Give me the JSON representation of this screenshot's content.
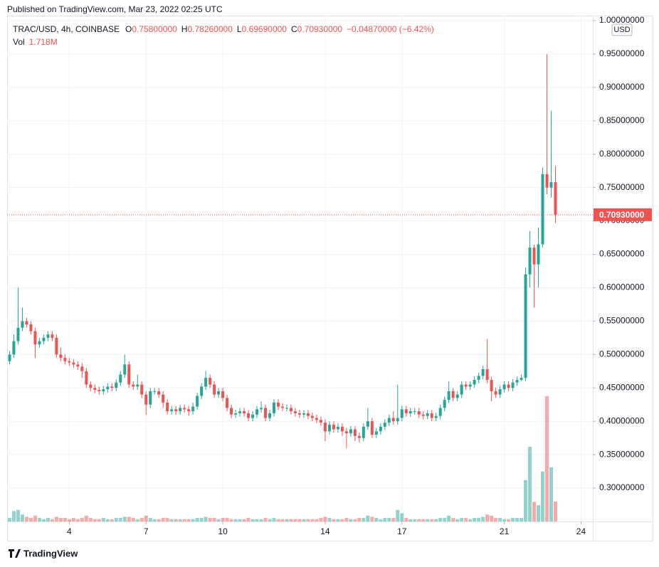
{
  "published": "Published on TradingView.com, Mar 23, 2022 02:25 UTC",
  "footer": "TradingView",
  "chart_data": {
    "type": "candlestick",
    "symbol": "TRAC/USD, 4h, COINBASE",
    "ohlc_legend": {
      "o_label": "O",
      "o": "0.75800000",
      "h_label": "H",
      "h": "0.78260000",
      "l_label": "L",
      "l": "0.69690000",
      "c_label": "C",
      "c": "0.70930000",
      "change": "−0.04870000 (−6.42%)"
    },
    "volume_legend": {
      "label": "Vol",
      "value": "1.718M"
    },
    "currency": "USD",
    "up_color": "#26a69a",
    "down_color": "#ef5350",
    "grid": true,
    "x": [
      1.667,
      1.833,
      2,
      2.167,
      2.333,
      2.5,
      2.667,
      2.833,
      3,
      3.167,
      3.333,
      3.5,
      3.667,
      3.833,
      4,
      4.167,
      4.333,
      4.5,
      4.667,
      4.833,
      5,
      5.167,
      5.333,
      5.5,
      5.667,
      5.833,
      6,
      6.167,
      6.333,
      6.5,
      6.667,
      6.833,
      7,
      7.167,
      7.333,
      7.5,
      7.667,
      7.833,
      8,
      8.167,
      8.333,
      8.5,
      8.667,
      8.833,
      9,
      9.167,
      9.333,
      9.5,
      9.667,
      9.833,
      10,
      10.167,
      10.333,
      10.5,
      10.667,
      10.833,
      11,
      11.167,
      11.333,
      11.5,
      11.667,
      11.833,
      12,
      12.167,
      12.333,
      12.5,
      12.667,
      12.833,
      13,
      13.167,
      13.333,
      13.5,
      13.667,
      13.833,
      14,
      14.167,
      14.333,
      14.5,
      14.667,
      14.833,
      15,
      15.167,
      15.333,
      15.5,
      15.667,
      15.833,
      16,
      16.167,
      16.333,
      16.5,
      16.667,
      16.833,
      17,
      17.167,
      17.333,
      17.5,
      17.667,
      17.833,
      18,
      18.167,
      18.333,
      18.5,
      18.667,
      18.833,
      19,
      19.167,
      19.333,
      19.5,
      19.667,
      19.833,
      20,
      20.167,
      20.333,
      20.5,
      20.667,
      20.833,
      21,
      21.167,
      21.333,
      21.5,
      21.667,
      21.833,
      22,
      22.167,
      22.333,
      22.5,
      22.667,
      22.833,
      23
    ],
    "open": [
      0.49,
      0.5,
      0.52,
      0.54,
      0.55,
      0.545,
      0.535,
      0.515,
      0.52,
      0.525,
      0.53,
      0.525,
      0.5,
      0.495,
      0.49,
      0.488,
      0.485,
      0.482,
      0.475,
      0.455,
      0.45,
      0.447,
      0.445,
      0.448,
      0.452,
      0.45,
      0.458,
      0.47,
      0.485,
      0.455,
      0.452,
      0.455,
      0.44,
      0.425,
      0.445,
      0.445,
      0.44,
      0.428,
      0.415,
      0.418,
      0.415,
      0.42,
      0.418,
      0.415,
      0.422,
      0.438,
      0.452,
      0.465,
      0.455,
      0.44,
      0.445,
      0.435,
      0.42,
      0.41,
      0.412,
      0.415,
      0.412,
      0.405,
      0.41,
      0.418,
      0.42,
      0.405,
      0.412,
      0.428,
      0.422,
      0.42,
      0.42,
      0.415,
      0.412,
      0.41,
      0.412,
      0.408,
      0.405,
      0.402,
      0.398,
      0.385,
      0.395,
      0.388,
      0.392,
      0.385,
      0.382,
      0.388,
      0.378,
      0.375,
      0.392,
      0.4,
      0.38,
      0.385,
      0.392,
      0.398,
      0.405,
      0.4,
      0.405,
      0.418,
      0.412,
      0.415,
      0.415,
      0.41,
      0.408,
      0.412,
      0.405,
      0.408,
      0.42,
      0.432,
      0.445,
      0.435,
      0.44,
      0.455,
      0.452,
      0.455,
      0.462,
      0.468,
      0.478,
      0.462,
      0.445,
      0.44,
      0.448,
      0.455,
      0.45,
      0.458,
      0.462,
      0.465,
      0.62,
      0.66,
      0.635,
      0.665,
      0.77,
      0.75,
      0.758
    ],
    "high": [
      0.505,
      0.53,
      0.6,
      0.57,
      0.555,
      0.55,
      0.54,
      0.525,
      0.53,
      0.535,
      0.535,
      0.53,
      0.51,
      0.5,
      0.495,
      0.493,
      0.49,
      0.487,
      0.48,
      0.46,
      0.455,
      0.452,
      0.453,
      0.457,
      0.457,
      0.463,
      0.475,
      0.5,
      0.49,
      0.46,
      0.47,
      0.46,
      0.445,
      0.45,
      0.45,
      0.45,
      0.445,
      0.433,
      0.423,
      0.423,
      0.425,
      0.425,
      0.423,
      0.428,
      0.443,
      0.457,
      0.475,
      0.47,
      0.46,
      0.45,
      0.45,
      0.44,
      0.425,
      0.417,
      0.42,
      0.42,
      0.417,
      0.415,
      0.423,
      0.43,
      0.425,
      0.417,
      0.433,
      0.433,
      0.427,
      0.425,
      0.425,
      0.42,
      0.417,
      0.417,
      0.417,
      0.413,
      0.41,
      0.407,
      0.403,
      0.4,
      0.4,
      0.397,
      0.397,
      0.39,
      0.393,
      0.393,
      0.383,
      0.397,
      0.42,
      0.405,
      0.39,
      0.397,
      0.403,
      0.41,
      0.415,
      0.455,
      0.423,
      0.423,
      0.42,
      0.42,
      0.42,
      0.415,
      0.417,
      0.417,
      0.413,
      0.425,
      0.437,
      0.46,
      0.45,
      0.445,
      0.46,
      0.46,
      0.46,
      0.467,
      0.473,
      0.483,
      0.523,
      0.467,
      0.45,
      0.453,
      0.46,
      0.46,
      0.463,
      0.467,
      0.47,
      0.63,
      0.685,
      0.665,
      0.69,
      0.78,
      0.95,
      0.865,
      0.7826
    ],
    "low": [
      0.485,
      0.495,
      0.515,
      0.535,
      0.54,
      0.53,
      0.495,
      0.51,
      0.515,
      0.52,
      0.52,
      0.495,
      0.49,
      0.485,
      0.483,
      0.48,
      0.477,
      0.465,
      0.45,
      0.445,
      0.442,
      0.44,
      0.44,
      0.443,
      0.445,
      0.445,
      0.453,
      0.465,
      0.45,
      0.447,
      0.447,
      0.435,
      0.41,
      0.42,
      0.44,
      0.435,
      0.42,
      0.41,
      0.41,
      0.41,
      0.41,
      0.413,
      0.408,
      0.41,
      0.418,
      0.433,
      0.447,
      0.45,
      0.435,
      0.435,
      0.43,
      0.415,
      0.405,
      0.405,
      0.407,
      0.407,
      0.4,
      0.4,
      0.405,
      0.413,
      0.4,
      0.4,
      0.407,
      0.417,
      0.415,
      0.415,
      0.41,
      0.407,
      0.405,
      0.405,
      0.403,
      0.4,
      0.397,
      0.393,
      0.37,
      0.38,
      0.383,
      0.383,
      0.378,
      0.36,
      0.377,
      0.37,
      0.368,
      0.37,
      0.387,
      0.375,
      0.375,
      0.38,
      0.387,
      0.393,
      0.395,
      0.395,
      0.4,
      0.407,
      0.407,
      0.41,
      0.405,
      0.403,
      0.403,
      0.4,
      0.4,
      0.403,
      0.415,
      0.427,
      0.43,
      0.43,
      0.435,
      0.447,
      0.447,
      0.45,
      0.457,
      0.463,
      0.457,
      0.43,
      0.435,
      0.435,
      0.443,
      0.445,
      0.445,
      0.453,
      0.46,
      0.46,
      0.6,
      0.57,
      0.6,
      0.66,
      0.74,
      0.735,
      0.6969
    ],
    "close": [
      0.5,
      0.52,
      0.54,
      0.55,
      0.545,
      0.535,
      0.515,
      0.52,
      0.525,
      0.53,
      0.525,
      0.5,
      0.495,
      0.49,
      0.488,
      0.485,
      0.482,
      0.475,
      0.455,
      0.45,
      0.447,
      0.445,
      0.448,
      0.452,
      0.45,
      0.458,
      0.47,
      0.485,
      0.455,
      0.452,
      0.455,
      0.44,
      0.425,
      0.445,
      0.445,
      0.44,
      0.428,
      0.415,
      0.418,
      0.415,
      0.42,
      0.418,
      0.415,
      0.422,
      0.438,
      0.452,
      0.465,
      0.455,
      0.44,
      0.445,
      0.435,
      0.42,
      0.41,
      0.412,
      0.415,
      0.412,
      0.405,
      0.41,
      0.418,
      0.42,
      0.405,
      0.412,
      0.428,
      0.422,
      0.42,
      0.42,
      0.415,
      0.412,
      0.41,
      0.412,
      0.408,
      0.405,
      0.402,
      0.398,
      0.385,
      0.395,
      0.388,
      0.392,
      0.385,
      0.382,
      0.388,
      0.378,
      0.375,
      0.392,
      0.4,
      0.38,
      0.385,
      0.392,
      0.398,
      0.405,
      0.4,
      0.405,
      0.418,
      0.412,
      0.415,
      0.415,
      0.41,
      0.408,
      0.412,
      0.405,
      0.408,
      0.42,
      0.432,
      0.445,
      0.435,
      0.44,
      0.455,
      0.452,
      0.455,
      0.462,
      0.468,
      0.478,
      0.462,
      0.445,
      0.44,
      0.448,
      0.455,
      0.45,
      0.458,
      0.462,
      0.465,
      0.62,
      0.66,
      0.635,
      0.665,
      0.77,
      0.75,
      0.758,
      0.7093
    ],
    "volume": [
      0.3,
      0.9,
      1.0,
      0.6,
      0.4,
      0.3,
      0.5,
      0.3,
      0.2,
      0.3,
      0.2,
      0.4,
      0.3,
      0.3,
      0.2,
      0.3,
      0.2,
      0.3,
      0.5,
      0.3,
      0.2,
      0.2,
      0.3,
      0.2,
      0.2,
      0.3,
      0.3,
      0.4,
      0.4,
      0.3,
      0.2,
      0.3,
      0.5,
      0.3,
      0.2,
      0.2,
      0.3,
      0.3,
      0.2,
      0.2,
      0.2,
      0.2,
      0.2,
      0.2,
      0.3,
      0.3,
      0.4,
      0.3,
      0.3,
      0.2,
      0.3,
      0.3,
      0.2,
      0.2,
      0.2,
      0.2,
      0.3,
      0.2,
      0.2,
      0.2,
      0.3,
      0.2,
      0.3,
      0.2,
      0.2,
      0.2,
      0.2,
      0.2,
      0.2,
      0.2,
      0.2,
      0.2,
      0.2,
      0.3,
      0.4,
      0.3,
      0.2,
      0.2,
      0.2,
      0.3,
      0.2,
      0.2,
      0.3,
      0.3,
      0.5,
      0.4,
      0.3,
      0.2,
      0.3,
      0.3,
      0.3,
      1.0,
      0.7,
      0.3,
      0.2,
      0.2,
      0.2,
      0.2,
      0.2,
      0.2,
      0.2,
      0.3,
      0.3,
      0.5,
      0.3,
      0.2,
      0.3,
      0.3,
      0.2,
      0.3,
      0.3,
      0.4,
      0.6,
      0.5,
      0.3,
      0.3,
      0.2,
      0.2,
      0.3,
      0.3,
      0.3,
      3.56,
      6.44,
      1.7,
      1.4,
      4.3,
      10.8,
      4.66,
      1.718
    ],
    "xlim": [
      1.57,
      24.46
    ],
    "xticks": [
      4,
      7,
      10,
      14,
      17,
      21,
      24
    ],
    "ylim": [
      0.25,
      1.0074
    ],
    "yticks": [
      {
        "value": 0.3,
        "label": "0.30000000"
      },
      {
        "value": 0.35,
        "label": "0.35000000"
      },
      {
        "value": 0.4,
        "label": "0.40000000"
      },
      {
        "value": 0.45,
        "label": "0.45000000"
      },
      {
        "value": 0.5,
        "label": "0.50000000"
      },
      {
        "value": 0.55,
        "label": "0.55000000"
      },
      {
        "value": 0.6,
        "label": "0.60000000"
      },
      {
        "value": 0.65,
        "label": "0.65000000"
      },
      {
        "value": 0.7,
        "label": "0.70000000"
      },
      {
        "value": 0.75,
        "label": "0.75000000"
      },
      {
        "value": 0.8,
        "label": "0.80000000"
      },
      {
        "value": 0.85,
        "label": "0.85000000"
      },
      {
        "value": 0.9,
        "label": "0.90000000"
      },
      {
        "value": 0.95,
        "label": "0.95000000"
      },
      {
        "value": 1.0,
        "label": "1.00000000"
      }
    ],
    "vlim": [
      0,
      43.6
    ],
    "last_price": 0.7093,
    "last_price_label": "0.70930000"
  }
}
